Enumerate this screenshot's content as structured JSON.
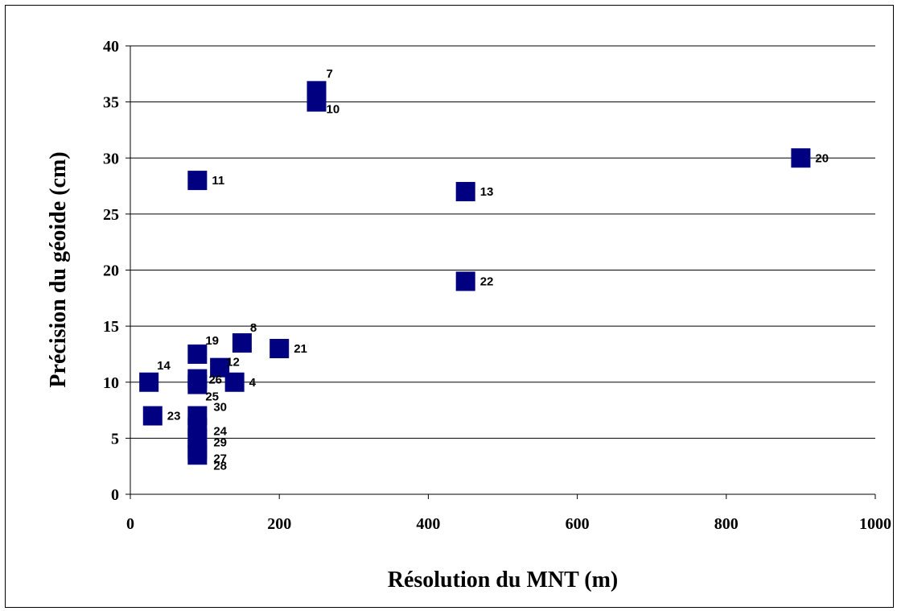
{
  "chart_data": {
    "type": "scatter",
    "xlabel": "Résolution du MNT (m)",
    "ylabel": "Précision du géoide (cm)",
    "xlim": [
      0,
      1000
    ],
    "ylim": [
      0,
      40
    ],
    "x_ticks": [
      "0",
      "200",
      "400",
      "600",
      "800",
      "1000"
    ],
    "y_ticks": [
      "0",
      "5",
      "10",
      "15",
      "20",
      "25",
      "30",
      "35",
      "40"
    ],
    "grid": "horizontal",
    "marker_color": "#000080",
    "points": [
      {
        "label": "7",
        "x": 250,
        "y": 36
      },
      {
        "label": "10",
        "x": 250,
        "y": 35
      },
      {
        "label": "20",
        "x": 900,
        "y": 30
      },
      {
        "label": "11",
        "x": 90,
        "y": 28
      },
      {
        "label": "13",
        "x": 450,
        "y": 27
      },
      {
        "label": "22",
        "x": 450,
        "y": 19
      },
      {
        "label": "8",
        "x": 150,
        "y": 13.5
      },
      {
        "label": "21",
        "x": 200,
        "y": 13
      },
      {
        "label": "19",
        "x": 90,
        "y": 12.5
      },
      {
        "label": "12",
        "x": 120,
        "y": 11.3
      },
      {
        "label": "14",
        "x": 25,
        "y": 10
      },
      {
        "label": "26",
        "x": 90,
        "y": 10.3
      },
      {
        "label": "25",
        "x": 90,
        "y": 9.8
      },
      {
        "label": "4",
        "x": 140,
        "y": 10
      },
      {
        "label": "23",
        "x": 30,
        "y": 7
      },
      {
        "label": "30",
        "x": 90,
        "y": 7
      },
      {
        "label": "24",
        "x": 90,
        "y": 6
      },
      {
        "label": "29",
        "x": 90,
        "y": 5
      },
      {
        "label": "27",
        "x": 90,
        "y": 4
      },
      {
        "label": "28",
        "x": 90,
        "y": 3.5
      }
    ]
  }
}
